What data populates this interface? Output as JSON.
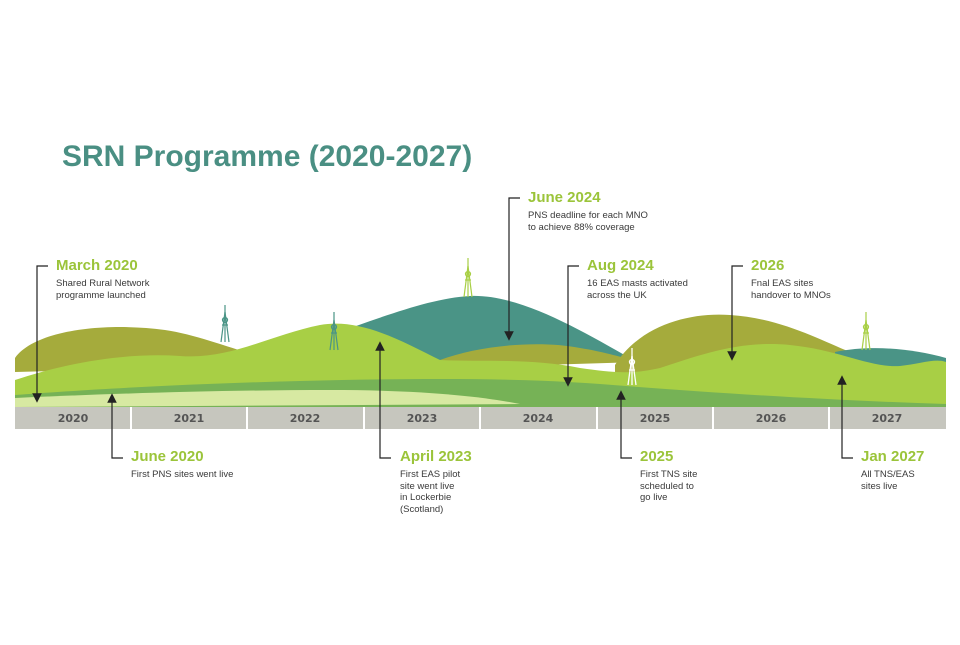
{
  "title": "SRN Programme (2020-2027)",
  "years": [
    "2020",
    "2021",
    "2022",
    "2023",
    "2024",
    "2025",
    "2026",
    "2027"
  ],
  "milestones": [
    {
      "date": "March 2020",
      "desc": "Shared Rural Network\nprogramme launched"
    },
    {
      "date": "June 2020",
      "desc": "First PNS sites went live"
    },
    {
      "date": "April 2023",
      "desc": "First EAS pilot\nsite went live\nin Lockerbie\n(Scotland)"
    },
    {
      "date": "June 2024",
      "desc": "PNS deadline for each MNO\nto achieve 88% coverage"
    },
    {
      "date": "Aug 2024",
      "desc": "16 EAS masts activated\nacross the UK"
    },
    {
      "date": "2025",
      "desc": "First TNS site\nscheduled to\ngo live"
    },
    {
      "date": "2026",
      "desc": "Fnal EAS sites\nhandover to MNOs"
    },
    {
      "date": "Jan 2027",
      "desc": "All TNS/EAS\nsites live"
    }
  ],
  "colors": {
    "title": "#4a8f83",
    "milestone_heading": "#9bc43a",
    "teal_hill": "#4a9486",
    "olive_hill": "#a5ab3c",
    "green_hill": "#a8cf45",
    "mid_band": "#76b256",
    "pale_band": "#d7e9a2",
    "timeline_bar": "#c6c6be"
  }
}
